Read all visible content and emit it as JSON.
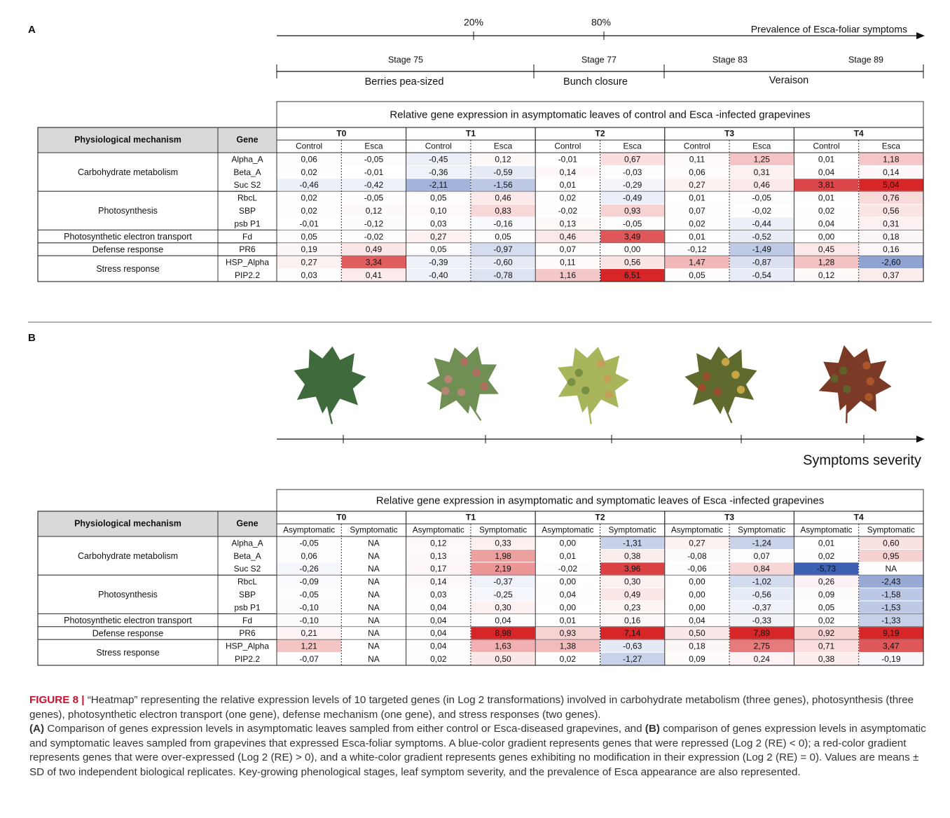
{
  "panel_a": {
    "label": "A",
    "prevalence": {
      "ticks": [
        "20%",
        "80%"
      ],
      "label": "Prevalence of Esca-foliar symptoms"
    },
    "stages": [
      "Stage 75",
      "Stage 77",
      "Stage 83",
      "Stage 89"
    ],
    "phases": [
      "Berries pea-sized",
      "Bunch closure",
      "Veraison"
    ],
    "table": {
      "title": "Relative gene expression in asymptomatic leaves of control and Esca -infected grapevines",
      "header": [
        "Physiological mechanism",
        "Gene"
      ],
      "times": [
        "T0",
        "T1",
        "T2",
        "T3",
        "T4"
      ],
      "conditions": [
        "Control",
        "Esca"
      ],
      "groups": [
        {
          "mechanism": "Carbohydrate metabolism",
          "genes": [
            "Alpha_A",
            "Beta_A",
            "Suc S2"
          ]
        },
        {
          "mechanism": "Photosynthesis",
          "genes": [
            "RbcL",
            "SBP",
            "psb P1"
          ]
        },
        {
          "mechanism": "Photosynthetic electron transport",
          "genes": [
            "Fd"
          ]
        },
        {
          "mechanism": "Defense response",
          "genes": [
            "PR6"
          ]
        },
        {
          "mechanism": "Stress response",
          "genes": [
            "HSP_Alpha",
            "PIP2.2"
          ]
        }
      ],
      "rows": [
        [
          "0,06",
          "-0,05",
          "-0,45",
          "0,12",
          "-0,01",
          "0,67",
          "0,11",
          "1,25",
          "0,01",
          "1,18"
        ],
        [
          "0,02",
          "-0,01",
          "-0,36",
          "-0,59",
          "0,14",
          "-0,03",
          "0,06",
          "0,31",
          "0,04",
          "0,14"
        ],
        [
          "-0,46",
          "-0,42",
          "-2,11",
          "-1,56",
          "0,01",
          "-0,29",
          "0,27",
          "0,46",
          "3,81",
          "5,04"
        ],
        [
          "0,02",
          "-0,05",
          "0,05",
          "0,46",
          "0,02",
          "-0,49",
          "0,01",
          "-0,05",
          "0,01",
          "0,76"
        ],
        [
          "0,02",
          "0,12",
          "0,10",
          "0,83",
          "-0,02",
          "0,93",
          "0,07",
          "-0,02",
          "0,02",
          "0,56"
        ],
        [
          "-0,01",
          "-0,12",
          "0,03",
          "-0,16",
          "0,13",
          "-0,05",
          "0,02",
          "-0,44",
          "0,04",
          "0,31"
        ],
        [
          "0,05",
          "-0,02",
          "0,27",
          "0,05",
          "0,46",
          "3,49",
          "0,01",
          "-0,52",
          "0,00",
          "0,18"
        ],
        [
          "0,19",
          "0,49",
          "0,05",
          "-0,97",
          "0,07",
          "0,00",
          "-0,12",
          "-1,49",
          "0,45",
          "0,16"
        ],
        [
          "0,27",
          "3,34",
          "-0,39",
          "-0,60",
          "0,11",
          "0,56",
          "1,47",
          "-0,87",
          "1,28",
          "-2,60"
        ],
        [
          "0,03",
          "0,41",
          "-0,40",
          "-0,78",
          "1,16",
          "6,51",
          "0,05",
          "-0,54",
          "0,12",
          "0,37"
        ]
      ]
    }
  },
  "panel_b": {
    "label": "B",
    "axis_label": "Symptoms severity",
    "table": {
      "title": "Relative gene expression in asymptomatic and symptomatic leaves of Esca -infected grapevines",
      "header": [
        "Physiological mechanism",
        "Gene"
      ],
      "times": [
        "T0",
        "T1",
        "T2",
        "T3",
        "T4"
      ],
      "conditions": [
        "Asymptomatic",
        "Symptomatic"
      ],
      "groups": [
        {
          "mechanism": "Carbohydrate metabolism",
          "genes": [
            "Alpha_A",
            "Beta_A",
            "Suc S2"
          ]
        },
        {
          "mechanism": "Photosynthesis",
          "genes": [
            "RbcL",
            "SBP",
            "psb P1"
          ]
        },
        {
          "mechanism": "Photosynthetic electron transport",
          "genes": [
            "Fd"
          ]
        },
        {
          "mechanism": "Defense response",
          "genes": [
            "PR6"
          ]
        },
        {
          "mechanism": "Stress response",
          "genes": [
            "HSP_Alpha",
            "PIP2.2"
          ]
        }
      ],
      "rows": [
        [
          "-0,05",
          "NA",
          "0,12",
          "0,33",
          "0,00",
          "-1,31",
          "0,27",
          "-1,24",
          "0,01",
          "0,60"
        ],
        [
          "0,06",
          "NA",
          "0,13",
          "1,98",
          "0,01",
          "0,38",
          "-0,08",
          "0,07",
          "0,02",
          "0,95"
        ],
        [
          "-0,26",
          "NA",
          "0,17",
          "2,19",
          "-0,02",
          "3,96",
          "-0,06",
          "0,84",
          "-5,73",
          "NA"
        ],
        [
          "-0,09",
          "NA",
          "0,14",
          "-0,37",
          "0,00",
          "0,30",
          "0,00",
          "-1,02",
          "0,26",
          "-2,43"
        ],
        [
          "-0,05",
          "NA",
          "0,03",
          "-0,25",
          "0,04",
          "0,49",
          "0,00",
          "-0,56",
          "0,09",
          "-1,58"
        ],
        [
          "-0,10",
          "NA",
          "0,04",
          "0,30",
          "0,00",
          "0,23",
          "0,00",
          "-0,37",
          "0,05",
          "-1,53"
        ],
        [
          "-0,10",
          "NA",
          "0,04",
          "0,04",
          "0,01",
          "0,16",
          "0,04",
          "-0,33",
          "0,02",
          "-1,33"
        ],
        [
          "0,21",
          "NA",
          "0,04",
          "8,98",
          "0,93",
          "7,14",
          "0,50",
          "7,89",
          "0,92",
          "9,19"
        ],
        [
          "1,21",
          "NA",
          "0,04",
          "1,63",
          "1,38",
          "-0,63",
          "0,18",
          "2,75",
          "0,71",
          "3,47"
        ],
        [
          "-0,07",
          "NA",
          "0,02",
          "0,50",
          "0,02",
          "-1,27",
          "0,09",
          "0,24",
          "0,38",
          "-0,19"
        ]
      ]
    }
  },
  "caption": {
    "label": "FIGURE 8 |",
    "intro": "“Heatmap” representing the relative expression levels of 10 targeted genes (in Log 2 transformations) involved in carbohydrate metabolism (three genes), photosynthesis (three genes), photosynthetic electron transport (one gene), defense mechanism (one gene), and stress responses (two genes).",
    "part_a_label": "(A)",
    "part_a": "Comparison of genes expression levels in asymptomatic leaves sampled from either control or Esca-diseased grapevines, and",
    "part_b_label": "(B)",
    "part_b": "comparison of genes expression levels in asymptomatic and symptomatic leaves sampled from grapevines that expressed Esca-foliar symptoms. A blue-color gradient represents genes that were repressed (Log 2 (RE) < 0); a red-color gradient represents genes that were over-expressed (Log 2 (RE) > 0), and a white-color gradient represents genes exhibiting no modification in their expression (Log 2 (RE) = 0). Values are means ± SD of two independent biological replicates. Key-growing phenological stages, leaf symptom severity, and the prevalence of Esca appearance are also represented."
  }
}
